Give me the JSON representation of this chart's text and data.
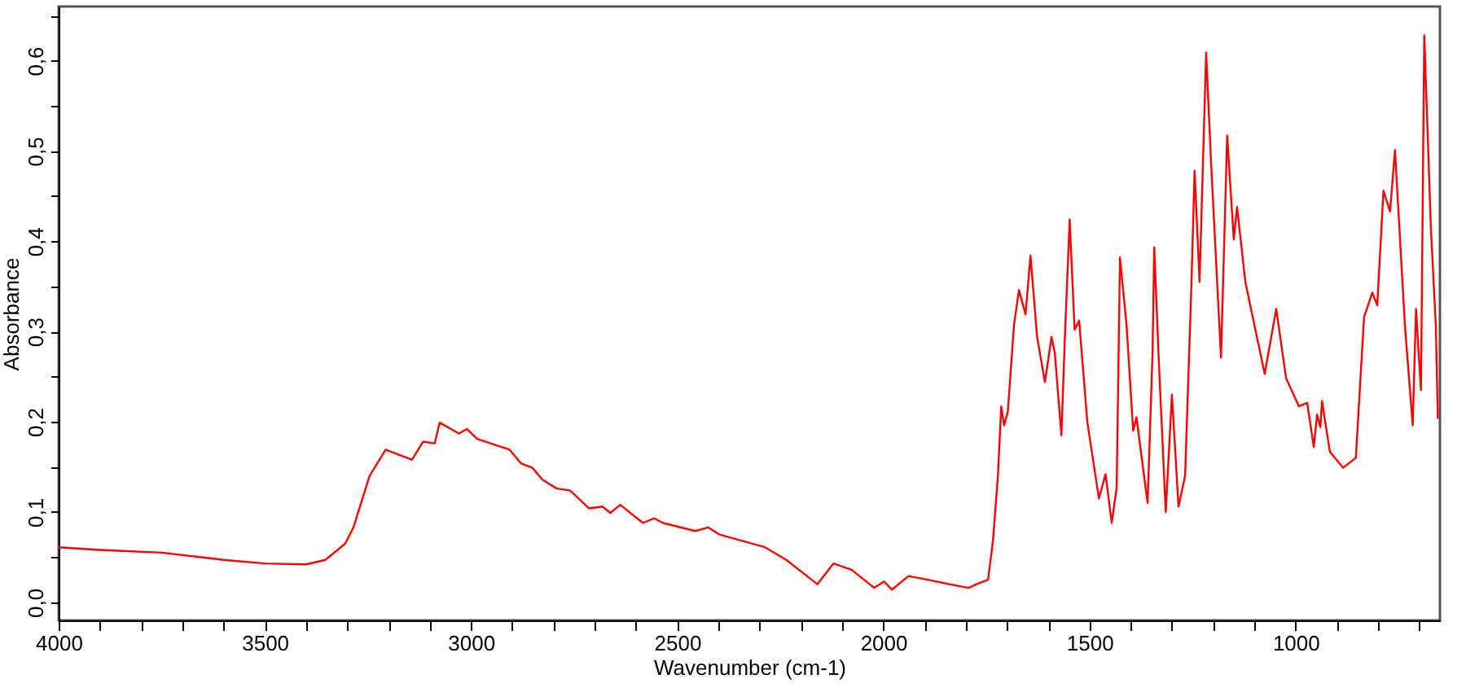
{
  "chart_data": {
    "type": "line",
    "xlabel": "Wavenumber (cm-1)",
    "ylabel": "Absorbance",
    "xlim": [
      4000,
      650
    ],
    "xticks": [
      4000,
      {
        "value": 3900,
        "label": null
      },
      {
        "value": 3800,
        "label": null
      },
      {
        "value": 3700,
        "label": null
      },
      {
        "value": 3600,
        "label": null
      },
      3500,
      {
        "value": 3400,
        "label": null
      },
      {
        "value": 3300,
        "label": null
      },
      {
        "value": 3200,
        "label": null
      },
      {
        "value": 3100,
        "label": null
      },
      3000,
      {
        "value": 2900,
        "label": null
      },
      {
        "value": 2800,
        "label": null
      },
      {
        "value": 2700,
        "label": null
      },
      {
        "value": 2600,
        "label": null
      },
      2500,
      {
        "value": 2400,
        "label": null
      },
      {
        "value": 2300,
        "label": null
      },
      {
        "value": 2200,
        "label": null
      },
      {
        "value": 2100,
        "label": null
      },
      2000,
      {
        "value": 1900,
        "label": null
      },
      {
        "value": 1800,
        "label": null
      },
      {
        "value": 1700,
        "label": null
      },
      {
        "value": 1600,
        "label": null
      },
      1500,
      {
        "value": 1400,
        "label": null
      },
      {
        "value": 1300,
        "label": null
      },
      {
        "value": 1200,
        "label": null
      },
      {
        "value": 1100,
        "label": null
      },
      1000,
      {
        "value": 900,
        "label": null
      },
      {
        "value": 800,
        "label": null
      },
      {
        "value": 700,
        "label": null
      }
    ],
    "ylim": [
      -0.02,
      0.66
    ],
    "yticks": [
      {
        "value": 0,
        "label": "0,0"
      },
      {
        "value": 0.05,
        "label": null
      },
      {
        "value": 0.1,
        "label": "0,1"
      },
      {
        "value": 0.15,
        "label": null
      },
      {
        "value": 0.2,
        "label": "0,2"
      },
      {
        "value": 0.25,
        "label": null
      },
      {
        "value": 0.3,
        "label": "0,3"
      },
      {
        "value": 0.35,
        "label": null
      },
      {
        "value": 0.4,
        "label": "0,4"
      },
      {
        "value": 0.45,
        "label": null
      },
      {
        "value": 0.5,
        "label": "0,5"
      },
      {
        "value": 0.55,
        "label": null
      },
      {
        "value": 0.6,
        "label": "0,6"
      },
      {
        "value": 0.65,
        "label": null
      }
    ],
    "grid": false,
    "series": [
      {
        "color": "#ff0000",
        "x": [
          4000,
          3900,
          3750,
          3600,
          3500,
          3400,
          3353,
          3305,
          3285,
          3246,
          3207,
          3167,
          3143,
          3116,
          3088,
          3076,
          3029,
          3010,
          2985,
          2906,
          2879,
          2851,
          2827,
          2792,
          2760,
          2713,
          2681,
          2662,
          2638,
          2583,
          2555,
          2535,
          2456,
          2425,
          2397,
          2287,
          2235,
          2160,
          2121,
          2077,
          2022,
          1998,
          1979,
          1939,
          1892,
          1840,
          1793,
          1774,
          1746,
          1734,
          1722,
          1714,
          1707,
          1698,
          1683,
          1671,
          1655,
          1643,
          1627,
          1608,
          1592,
          1584,
          1568,
          1560,
          1548,
          1536,
          1525,
          1505,
          1477,
          1461,
          1446,
          1434,
          1426,
          1410,
          1394,
          1386,
          1359,
          1347,
          1343,
          1331,
          1315,
          1300,
          1284,
          1268,
          1253,
          1245,
          1233,
          1217,
          1205,
          1181,
          1166,
          1150,
          1142,
          1122,
          1075,
          1047,
          1023,
          992,
          972,
          956,
          948,
          940,
          936,
          917,
          885,
          854,
          834,
          814,
          802,
          787,
          771,
          759,
          735,
          716,
          708,
          696,
          688,
          672,
          660,
          655
        ],
        "values": [
          0.061,
          0.058,
          0.055,
          0.047,
          0.043,
          0.042,
          0.047,
          0.065,
          0.083,
          0.14,
          0.169,
          0.162,
          0.158,
          0.178,
          0.176,
          0.199,
          0.187,
          0.192,
          0.181,
          0.169,
          0.154,
          0.149,
          0.136,
          0.126,
          0.124,
          0.104,
          0.106,
          0.099,
          0.108,
          0.088,
          0.093,
          0.088,
          0.079,
          0.083,
          0.075,
          0.061,
          0.047,
          0.02,
          0.043,
          0.036,
          0.016,
          0.023,
          0.014,
          0.029,
          0.025,
          0.02,
          0.016,
          0.02,
          0.025,
          0.068,
          0.14,
          0.217,
          0.196,
          0.211,
          0.307,
          0.346,
          0.319,
          0.384,
          0.294,
          0.244,
          0.294,
          0.276,
          0.185,
          0.289,
          0.424,
          0.302,
          0.312,
          0.199,
          0.115,
          0.142,
          0.088,
          0.127,
          0.382,
          0.307,
          0.19,
          0.205,
          0.11,
          0.276,
          0.393,
          0.259,
          0.1,
          0.23,
          0.106,
          0.14,
          0.348,
          0.478,
          0.355,
          0.609,
          0.487,
          0.271,
          0.517,
          0.402,
          0.438,
          0.355,
          0.253,
          0.325,
          0.248,
          0.217,
          0.221,
          0.172,
          0.208,
          0.194,
          0.223,
          0.167,
          0.149,
          0.16,
          0.316,
          0.343,
          0.329,
          0.456,
          0.433,
          0.501,
          0.307,
          0.196,
          0.325,
          0.235,
          0.628,
          0.415,
          0.307,
          0.203
        ]
      }
    ]
  }
}
